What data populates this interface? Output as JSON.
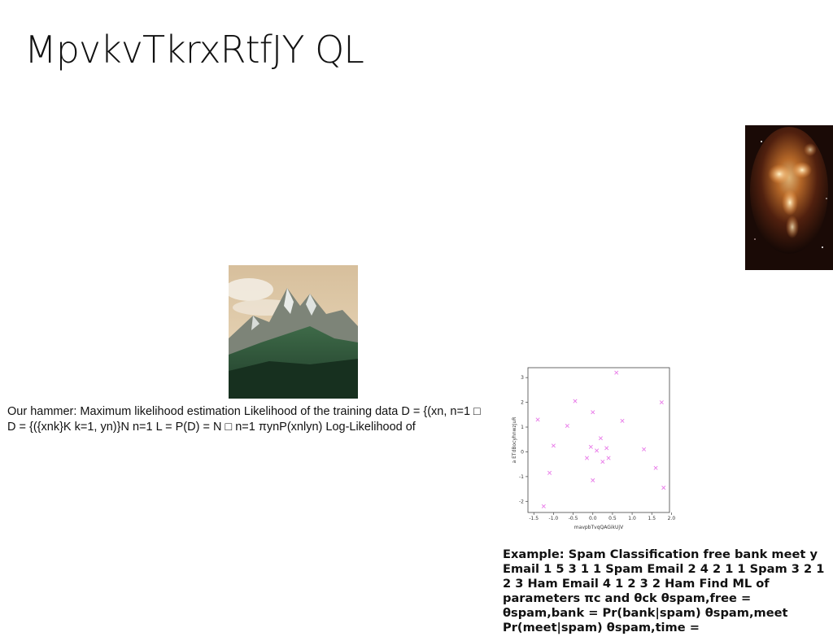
{
  "slide": {
    "title": "MpvkvTkrxRtfJY QL",
    "body_text": "Our hammer: Maximum likelihood estimation Likelihood of the training data D = {(xn, n=1 □ D = {({xnk}K k=1, yn)}N n=1 L = P(D) = N □ n=1 πynP(xnlyn) Log-Likelihood of",
    "example_text": "Example: Spam Classification free bank meet y Email 1 5 3 1 1 Spam Email 2 4 2 1 1 Spam 3 2 1 2 3 Ham Email 4 1 2 3 2 Ham Find ML of parameters πc and θck θspam,free = θspam,bank = Pr(bank|spam) θspam,meet Pr(meet|spam) θspam,time ="
  },
  "images": {
    "nebula": "nebula-photo",
    "mountain": "mountain-photo"
  },
  "chart_data": {
    "type": "scatter",
    "xlabel": "mavpbTvqQAGikUjV",
    "ylabel": "a ETdBocyhnwzJuR",
    "xlim": [
      -1.65,
      1.95
    ],
    "ylim": [
      -2.45,
      3.4
    ],
    "xticks": [
      "-1.5",
      "-1.0",
      "-0.5",
      "0.0",
      "0.5",
      "1.0",
      "1.5",
      "2.0"
    ],
    "yticks": [
      "-2",
      "-1",
      "0",
      "1",
      "2",
      "3"
    ],
    "marker": "x",
    "color": "#e879e8",
    "points": [
      [
        -1.4,
        1.3
      ],
      [
        -1.25,
        -2.2
      ],
      [
        -1.1,
        -0.85
      ],
      [
        -1.0,
        0.25
      ],
      [
        -0.65,
        1.05
      ],
      [
        -0.45,
        2.05
      ],
      [
        -0.15,
        -0.25
      ],
      [
        -0.05,
        0.2
      ],
      [
        0.0,
        1.6
      ],
      [
        0.0,
        -1.15
      ],
      [
        0.1,
        0.05
      ],
      [
        0.2,
        0.55
      ],
      [
        0.25,
        -0.4
      ],
      [
        0.35,
        0.15
      ],
      [
        0.4,
        -0.25
      ],
      [
        0.6,
        3.2
      ],
      [
        0.75,
        1.25
      ],
      [
        1.3,
        0.1
      ],
      [
        1.6,
        -0.65
      ],
      [
        1.75,
        2.0
      ],
      [
        1.8,
        -1.45
      ]
    ]
  }
}
